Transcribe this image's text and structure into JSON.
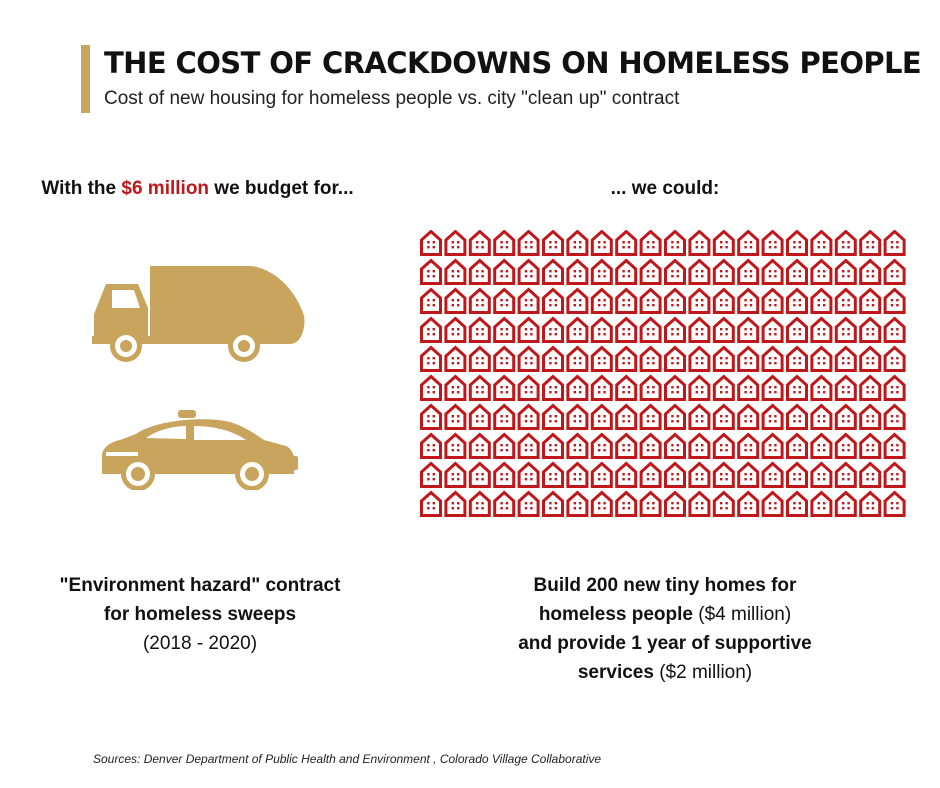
{
  "header": {
    "title": "THE COST OF CRACKDOWNS ON HOMELESS PEOPLE",
    "subtitle": "Cost of new housing for homeless people vs. city \"clean up\" contract"
  },
  "left": {
    "heading_pre": "With the ",
    "heading_money": "$6 million",
    "heading_post": " we budget for...",
    "truck_icon": "garbage-truck-icon",
    "taxi_icon": "car-icon",
    "caption_line1": "\"Environment hazard\" contract",
    "caption_line2": "for homeless sweeps",
    "caption_line3": "(2018 - 2020)"
  },
  "right": {
    "heading": "... we could:",
    "house_icon": "house-icon",
    "house_count": 200,
    "caption_line1": "Build 200 new tiny homes for",
    "caption_line2_bold": "homeless people",
    "caption_line2_rest": " ($4 million)",
    "caption_line3": "and provide 1 year of supportive",
    "caption_line4_bold": "services",
    "caption_line4_rest": " ($2 million)"
  },
  "sources": "Sources: Denver Department of Public Health and Environment , Colorado Village Collaborative",
  "colors": {
    "gold": "#c8a45c",
    "red": "#c0171a"
  }
}
